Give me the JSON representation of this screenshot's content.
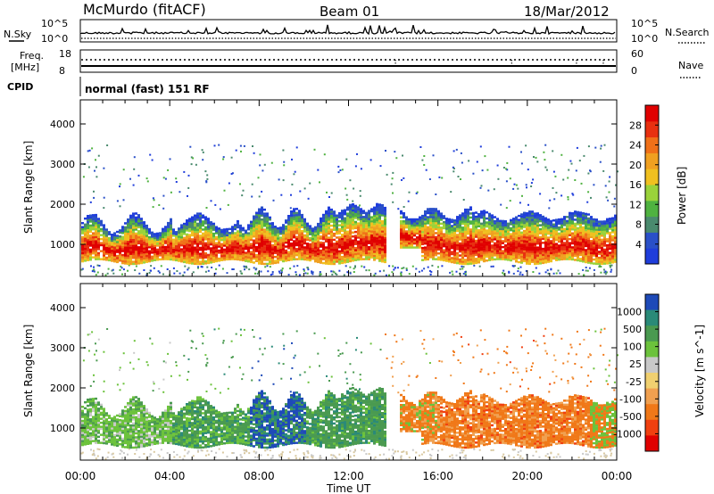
{
  "header": {
    "station": "McMurdo (fitACF)",
    "beam": "Beam 01",
    "date": "18/Mar/2012"
  },
  "status_panels": {
    "nsky_label": "N.Sky",
    "nsky_ticks": [
      "10^5",
      "10^0"
    ],
    "nsearch_label": "N.Search",
    "nsearch_ticks": [
      "10^5",
      "10^0"
    ],
    "freq_label": "Freq.",
    "freq_unit": "[MHz]",
    "freq_ticks": [
      "18",
      "8"
    ],
    "nave_label": "Nave",
    "nave_ticks": [
      "60",
      "0"
    ],
    "cpid_label": "CPID",
    "cpid_text": "normal (fast) 151 RF"
  },
  "x_axis": {
    "ticks": [
      "00:00",
      "04:00",
      "08:00",
      "12:00",
      "16:00",
      "20:00",
      "00:00"
    ],
    "label": "Time UT"
  },
  "colors": {
    "power": [
      "#1f3ddb",
      "#2a50c8",
      "#4a8a6e",
      "#4fb240",
      "#9ad23a",
      "#f0c020",
      "#f0a020",
      "#f07018",
      "#e83010",
      "#e00000"
    ],
    "velocity_neg": [
      "#e00000",
      "#f04010",
      "#f07818",
      "#f0a050",
      "#f0d070"
    ],
    "velocity_pos": [
      "#c8c8c8",
      "#6cc23c",
      "#4a9a50",
      "#2a8a78",
      "#1e4ab8"
    ]
  },
  "chart_data": [
    {
      "type": "heatmap",
      "panel": "power",
      "ylabel": "Slant Range [km]",
      "yticks": [
        "1000",
        "2000",
        "3000",
        "4000"
      ],
      "ylim": [
        200,
        4600
      ],
      "xlim": [
        0,
        24
      ],
      "colorbar_label": "Power [dB]",
      "colorbar_ticks": [
        "28",
        "24",
        "20",
        "16",
        "12",
        "8",
        "4"
      ],
      "colorbar_range": [
        0,
        32
      ]
    },
    {
      "type": "heatmap",
      "panel": "velocity",
      "ylabel": "Slant Range [km]",
      "yticks": [
        "1000",
        "2000",
        "3000",
        "4000"
      ],
      "ylim": [
        200,
        4600
      ],
      "xlim": [
        0,
        24
      ],
      "colorbar_label": "Velocity [m s^-1]",
      "colorbar_ticks": [
        "1000",
        "500",
        "100",
        "25",
        "-25",
        "-100",
        "-500",
        "-1000"
      ]
    }
  ]
}
